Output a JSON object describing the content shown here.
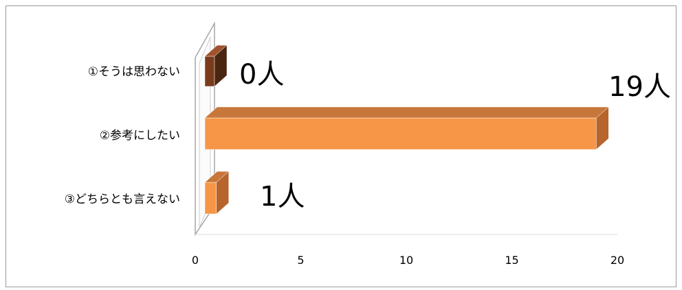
{
  "chart_data": {
    "type": "bar",
    "orientation": "horizontal",
    "style": "3d",
    "categories": [
      "①そうは思わない",
      "②参考にしたい",
      "③どちらとも言えない"
    ],
    "values": [
      0,
      19,
      1
    ],
    "data_labels": [
      "0人",
      "19人",
      "1人"
    ],
    "xlim": [
      0,
      20
    ],
    "x_ticks": [
      "0",
      "5",
      "10",
      "15",
      "20"
    ],
    "title": "",
    "xlabel": "",
    "ylabel": "",
    "grid": false,
    "legend": "none",
    "colors": {
      "bar_front": [
        "#7a3b1a",
        "#f79646",
        "#f79646"
      ],
      "bar_top": [
        "#a0522d",
        "#c8773a",
        "#c8773a"
      ],
      "bar_side": [
        "#4a2510",
        "#b8642d",
        "#b8642d"
      ],
      "wall": "#ffffff",
      "wall_stroke": "#a6a6a6",
      "frame": "#9a9a9a"
    }
  }
}
